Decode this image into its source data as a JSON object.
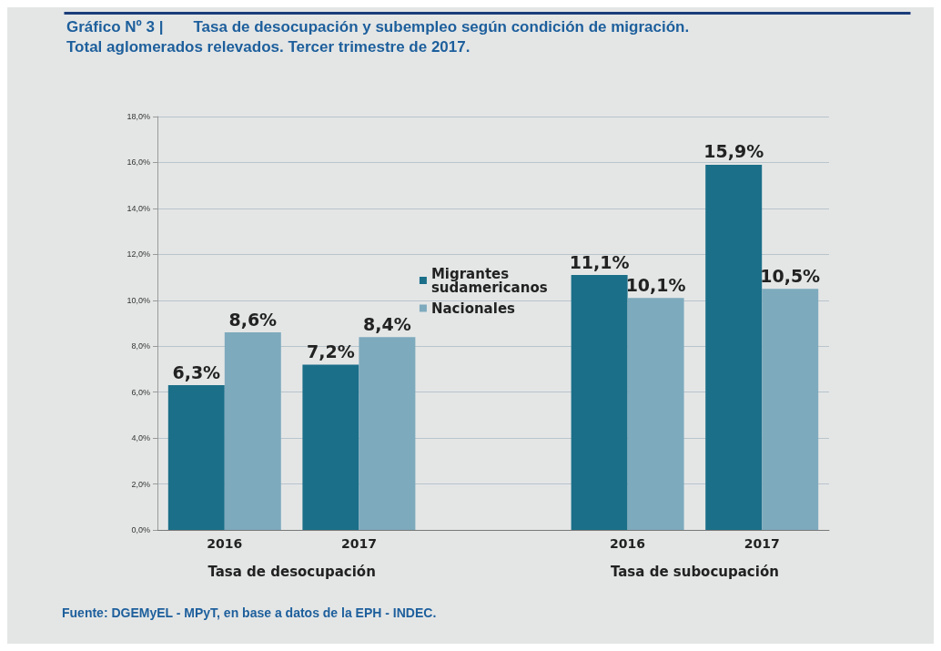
{
  "chart_data": {
    "type": "bar",
    "title": "Gráfico Nº 3 |       Tasa de desocupación y subempleo según condición de migración.",
    "subtitle": "Total aglomerados relevados. Tercer trimestre de 2017.",
    "categories": [
      "2016",
      "2017",
      null,
      "2016",
      "2017"
    ],
    "series": [
      {
        "name": "Migrantes sudamericanos",
        "color": "#1b6f89",
        "values": [
          6.3,
          7.2,
          null,
          11.1,
          15.9
        ],
        "value_labels": [
          "6,3%",
          "7,2%",
          null,
          "11,1%",
          "15,9%"
        ]
      },
      {
        "name": "Nacionales",
        "color": "#7eaabd",
        "values": [
          8.6,
          8.4,
          null,
          10.1,
          10.5
        ],
        "value_labels": [
          "8,6%",
          "8,4%",
          null,
          "10,1%",
          "10,5%"
        ]
      }
    ],
    "ylim": [
      0,
      18
    ],
    "yticks": [
      {
        "value": 0,
        "label": "0,0%"
      },
      {
        "value": 2,
        "label": "2,0%"
      },
      {
        "value": 4,
        "label": "4,0%"
      },
      {
        "value": 6,
        "label": "6,0%"
      },
      {
        "value": 8,
        "label": "8,0%"
      },
      {
        "value": 10,
        "label": "10,0%"
      },
      {
        "value": 12,
        "label": "12,0%"
      },
      {
        "value": 14,
        "label": "14,0%"
      },
      {
        "value": 16,
        "label": "16,0%"
      },
      {
        "value": 18,
        "label": "18,0%"
      }
    ],
    "grid": "y",
    "legend": "top",
    "annotations": [
      "Tasa de desocupación",
      "Tasa de subocupación",
      "Fuente: DGEMyEL - MPyT, en base a datos de la EPH - INDEC."
    ]
  }
}
